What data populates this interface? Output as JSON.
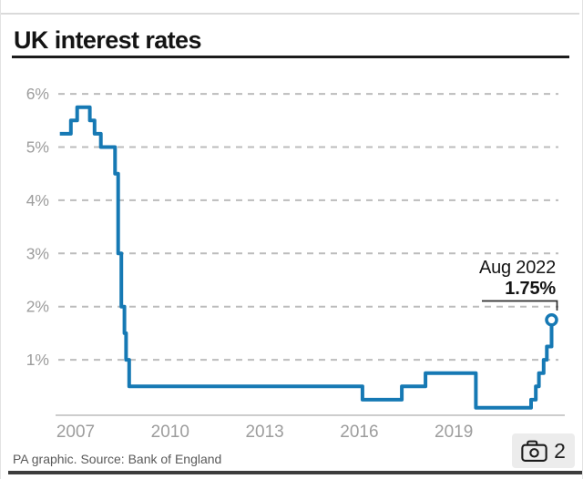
{
  "title": "UK interest rates",
  "annotation": {
    "label_line1": "Aug 2022",
    "label_line2": "1.75%"
  },
  "footer": {
    "source_text": "PA graphic. Source: Bank of England"
  },
  "photo_badge": {
    "count": "2",
    "icon": "camera-icon"
  },
  "colors": {
    "line": "#1679b4",
    "grid": "#bcbcbc",
    "axis": "#cdcdcd",
    "tick_text": "#9d9d9d",
    "leader_line": "#2e2e2e",
    "marker_fill": "#ffffff"
  },
  "chart_data": {
    "type": "line",
    "title": "UK interest rates",
    "xlabel": "",
    "ylabel": "",
    "x_ticks": [
      2007,
      2010,
      2013,
      2016,
      2019
    ],
    "y_ticks": [
      1,
      2,
      3,
      4,
      5,
      6
    ],
    "y_tick_suffix": "%",
    "xlim": [
      2006.95,
      2023.1
    ],
    "ylim": [
      0,
      6.3
    ],
    "grid": "dashed-horizontal",
    "step": true,
    "points": [
      [
        2007.0,
        5.25
      ],
      [
        2007.35,
        5.5
      ],
      [
        2007.55,
        5.75
      ],
      [
        2007.95,
        5.5
      ],
      [
        2008.1,
        5.25
      ],
      [
        2008.3,
        5.0
      ],
      [
        2008.75,
        4.5
      ],
      [
        2008.85,
        3.0
      ],
      [
        2008.95,
        2.0
      ],
      [
        2009.05,
        1.5
      ],
      [
        2009.1,
        1.0
      ],
      [
        2009.2,
        0.5
      ],
      [
        2016.6,
        0.25
      ],
      [
        2017.85,
        0.5
      ],
      [
        2018.6,
        0.75
      ],
      [
        2020.2,
        0.1
      ],
      [
        2021.95,
        0.25
      ],
      [
        2022.1,
        0.5
      ],
      [
        2022.2,
        0.75
      ],
      [
        2022.35,
        1.0
      ],
      [
        2022.45,
        1.25
      ],
      [
        2022.6,
        1.75
      ]
    ],
    "end_marker": {
      "x": 2022.6,
      "y": 1.75,
      "label": "Aug 2022",
      "value_label": "1.75%"
    },
    "source": "PA graphic. Source: Bank of England"
  }
}
